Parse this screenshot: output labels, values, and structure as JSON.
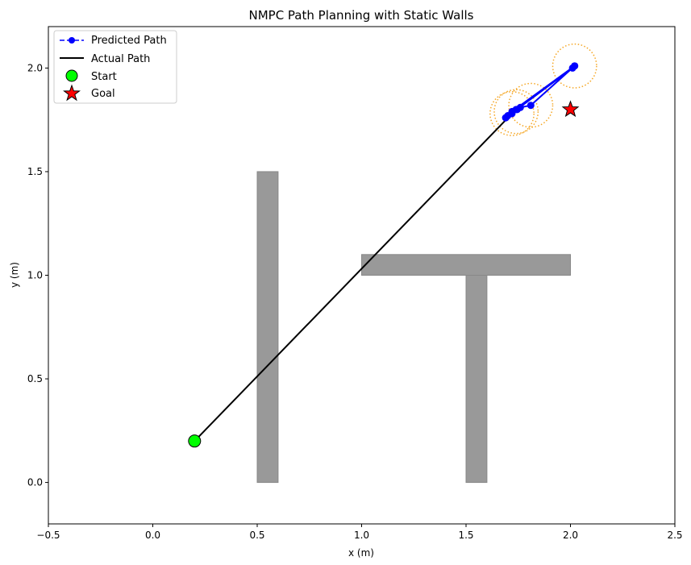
{
  "chart_data": {
    "type": "line",
    "title": "NMPC Path Planning with Static Walls",
    "xlabel": "x (m)",
    "ylabel": "y (m)",
    "xlim": [
      -0.5,
      2.5
    ],
    "ylim": [
      -0.2,
      2.2
    ],
    "xticks": [
      -0.5,
      0.0,
      0.5,
      1.0,
      1.5,
      2.0,
      2.5
    ],
    "xtick_labels": [
      "−0.5",
      "0.0",
      "0.5",
      "1.0",
      "1.5",
      "2.0",
      "2.5"
    ],
    "yticks": [
      0.0,
      0.5,
      1.0,
      1.5,
      2.0
    ],
    "ytick_labels": [
      "0.0",
      "0.5",
      "1.0",
      "1.5",
      "2.0"
    ],
    "grid": false,
    "legend_position": "top-left",
    "walls": [
      {
        "x": [
          0.5,
          0.6
        ],
        "y": [
          0.0,
          1.5
        ]
      },
      {
        "x": [
          1.0,
          2.0
        ],
        "y": [
          1.0,
          1.1
        ]
      },
      {
        "x": [
          1.5,
          1.6
        ],
        "y": [
          0.0,
          1.0
        ]
      }
    ],
    "wall_color": "#999999",
    "series": [
      {
        "name": "Predicted Path",
        "style": "dashed-marker",
        "color": "#0000ff",
        "x": [
          1.69,
          1.72,
          1.745,
          1.76,
          1.81,
          2.02,
          1.72,
          1.74,
          2.01,
          1.69,
          2.02,
          1.7
        ],
        "y": [
          1.76,
          1.78,
          1.8,
          1.81,
          1.82,
          2.01,
          1.79,
          1.8,
          2.0,
          1.76,
          2.01,
          1.77
        ]
      },
      {
        "name": "Actual Path",
        "style": "solid",
        "color": "#000000",
        "x": [
          0.2,
          1.72
        ],
        "y": [
          0.2,
          1.78
        ]
      }
    ],
    "obstacle_circles": [
      {
        "cx": 2.02,
        "cy": 2.01,
        "r": 0.105
      },
      {
        "cx": 1.81,
        "cy": 1.82,
        "r": 0.105
      },
      {
        "cx": 1.74,
        "cy": 1.79,
        "r": 0.105
      },
      {
        "cx": 1.72,
        "cy": 1.78,
        "r": 0.105
      }
    ],
    "obstacle_color": "#f5a623",
    "start": {
      "label": "Start",
      "x": 0.2,
      "y": 0.2,
      "color": "#00ff00"
    },
    "goal": {
      "label": "Goal",
      "x": 2.0,
      "y": 1.8,
      "color": "#ff0000"
    },
    "legend": [
      "Predicted Path",
      "Actual Path",
      "Start",
      "Goal"
    ]
  }
}
